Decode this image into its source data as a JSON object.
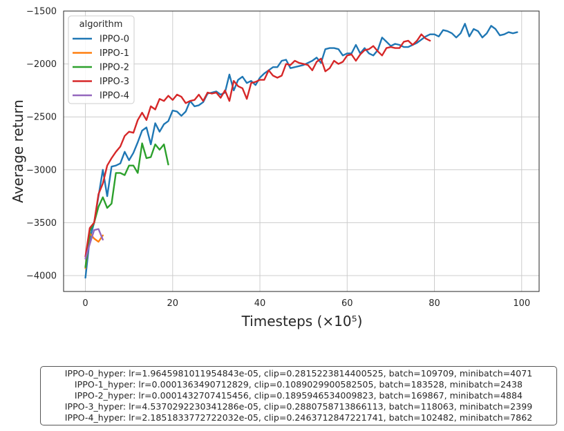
{
  "chart_data": {
    "type": "line",
    "title": "",
    "xlabel": "Timesteps (×10⁵)",
    "ylabel": "Average return",
    "xlim": [
      -5,
      104
    ],
    "ylim": [
      -4150,
      -1500
    ],
    "xticks": [
      0,
      20,
      40,
      60,
      80,
      100
    ],
    "yticks": [
      -1500,
      -2000,
      -2500,
      -3000,
      -3500,
      -4000
    ],
    "grid": true,
    "legend": {
      "title": "algorithm",
      "placement": "top-left"
    },
    "series": [
      {
        "name": "IPPO-0",
        "color": "#1f77b4",
        "x": [
          0,
          1,
          2,
          3,
          4,
          5,
          6,
          7,
          8,
          9,
          10,
          11,
          12,
          13,
          14,
          15,
          16,
          17,
          18,
          19,
          20,
          21,
          22,
          23,
          24,
          25,
          26,
          27,
          28,
          29,
          30,
          31,
          32,
          33,
          34,
          35,
          36,
          37,
          38,
          39,
          40,
          41,
          42,
          43,
          44,
          45,
          46,
          47,
          48,
          49,
          50,
          51,
          52,
          53,
          54,
          55,
          56,
          57,
          58,
          59,
          60,
          61,
          62,
          63,
          64,
          65,
          66,
          67,
          68,
          69,
          70,
          71,
          72,
          73,
          74,
          75,
          76,
          77,
          78,
          79,
          80,
          81,
          82,
          83,
          84,
          85,
          86,
          87,
          88,
          89,
          90,
          91,
          92,
          93,
          94,
          95,
          96,
          97,
          98,
          99
        ],
        "y": [
          -4020,
          -3650,
          -3500,
          -3250,
          -3000,
          -3250,
          -2970,
          -2960,
          -2940,
          -2830,
          -2910,
          -2840,
          -2740,
          -2630,
          -2600,
          -2760,
          -2560,
          -2640,
          -2570,
          -2540,
          -2440,
          -2450,
          -2490,
          -2450,
          -2350,
          -2400,
          -2390,
          -2360,
          -2280,
          -2270,
          -2260,
          -2290,
          -2270,
          -2100,
          -2250,
          -2150,
          -2120,
          -2180,
          -2160,
          -2200,
          -2130,
          -2090,
          -2060,
          -2030,
          -2030,
          -1970,
          -1960,
          -2040,
          -2030,
          -2020,
          -2010,
          -1990,
          -1970,
          -1940,
          -1990,
          -1860,
          -1850,
          -1850,
          -1860,
          -1920,
          -1900,
          -1900,
          -1820,
          -1900,
          -1850,
          -1900,
          -1920,
          -1870,
          -1750,
          -1790,
          -1830,
          -1810,
          -1820,
          -1840,
          -1840,
          -1820,
          -1800,
          -1770,
          -1740,
          -1720,
          -1720,
          -1740,
          -1680,
          -1690,
          -1710,
          -1750,
          -1710,
          -1620,
          -1740,
          -1670,
          -1690,
          -1750,
          -1710,
          -1640,
          -1670,
          -1730,
          -1720,
          -1700,
          -1710,
          -1700
        ]
      },
      {
        "name": "IPPO-1",
        "color": "#ff7f0e",
        "x": [
          0,
          1,
          2,
          3,
          4
        ],
        "y": [
          -3930,
          -3600,
          -3650,
          -3680,
          -3620
        ]
      },
      {
        "name": "IPPO-2",
        "color": "#2ca02c",
        "x": [
          0,
          1,
          2,
          3,
          4,
          5,
          6,
          7,
          8,
          9,
          10,
          11,
          12,
          13,
          14,
          15,
          16,
          17,
          18,
          19
        ],
        "y": [
          -3920,
          -3580,
          -3500,
          -3350,
          -3260,
          -3360,
          -3320,
          -3030,
          -3030,
          -3050,
          -2960,
          -2960,
          -3030,
          -2750,
          -2890,
          -2880,
          -2760,
          -2810,
          -2760,
          -2950
        ]
      },
      {
        "name": "IPPO-3",
        "color": "#d62728",
        "x": [
          0,
          1,
          2,
          3,
          4,
          5,
          6,
          7,
          8,
          9,
          10,
          11,
          12,
          13,
          14,
          15,
          16,
          17,
          18,
          19,
          20,
          21,
          22,
          23,
          24,
          25,
          26,
          27,
          28,
          29,
          30,
          31,
          32,
          33,
          34,
          35,
          36,
          37,
          38,
          39,
          40,
          41,
          42,
          43,
          44,
          45,
          46,
          47,
          48,
          49,
          50,
          51,
          52,
          53,
          54,
          55,
          56,
          57,
          58,
          59,
          60,
          61,
          62,
          63,
          64,
          65,
          66,
          67,
          68,
          69,
          70,
          71,
          72,
          73,
          74,
          75,
          76,
          77,
          78,
          79
        ],
        "y": [
          -3820,
          -3550,
          -3500,
          -3230,
          -3130,
          -2960,
          -2890,
          -2830,
          -2780,
          -2680,
          -2640,
          -2650,
          -2530,
          -2460,
          -2530,
          -2400,
          -2430,
          -2330,
          -2350,
          -2300,
          -2340,
          -2290,
          -2310,
          -2370,
          -2350,
          -2340,
          -2290,
          -2350,
          -2270,
          -2280,
          -2270,
          -2320,
          -2250,
          -2350,
          -2160,
          -2210,
          -2230,
          -2330,
          -2180,
          -2170,
          -2150,
          -2150,
          -2060,
          -2110,
          -2130,
          -2110,
          -2000,
          -2010,
          -1970,
          -1990,
          -2000,
          -2010,
          -2060,
          -1980,
          -1950,
          -2070,
          -2040,
          -1970,
          -2000,
          -1980,
          -1920,
          -1910,
          -1970,
          -1910,
          -1870,
          -1860,
          -1830,
          -1880,
          -1920,
          -1850,
          -1840,
          -1850,
          -1850,
          -1790,
          -1780,
          -1820,
          -1780,
          -1720,
          -1760,
          -1780
        ]
      },
      {
        "name": "IPPO-4",
        "color": "#9467bd",
        "x": [
          0,
          1,
          2,
          3,
          4
        ],
        "y": [
          -3840,
          -3700,
          -3570,
          -3560,
          -3660
        ]
      }
    ]
  },
  "hyperparams": [
    "IPPO-0_hyper: lr=1.9645981011954843e-05, clip=0.2815223814400525, batch=109709, minibatch=4071",
    "IPPO-1_hyper: lr=0.0001363490712829, clip=0.1089029900582505, batch=183528, minibatch=2438",
    "IPPO-2_hyper: lr=0.0001432707415456, clip=0.1895946534009823, batch=169867, minibatch=4884",
    "IPPO-3_hyper: lr=4.5370292230341286e-05, clip=0.2880758713866113, batch=118063, minibatch=2399",
    "IPPO-4_hyper: lr=2.1851833772722032e-05, clip=0.2463712847221741, batch=102482, minibatch=7862"
  ]
}
